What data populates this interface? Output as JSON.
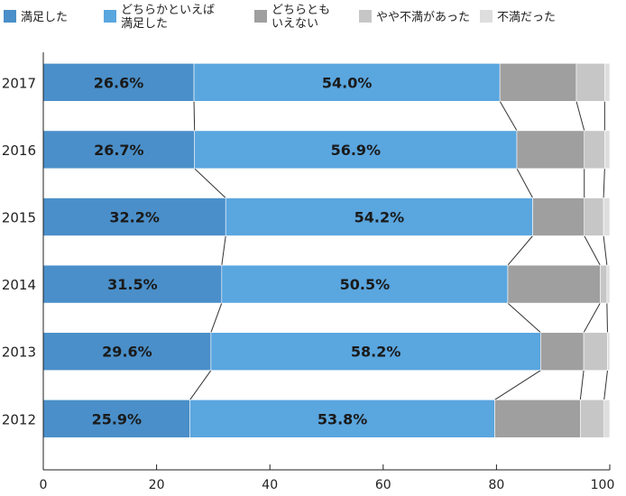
{
  "chart_data": {
    "type": "bar",
    "orientation": "horizontal",
    "stacked": true,
    "categories": [
      "2017",
      "2016",
      "2015",
      "2014",
      "2013",
      "2012"
    ],
    "series": [
      {
        "name": "満足した",
        "color": "#4a8fc9",
        "values": [
          26.6,
          26.7,
          32.2,
          31.5,
          29.6,
          25.9
        ],
        "labels": [
          "26.6%",
          "26.7%",
          "32.2%",
          "31.5%",
          "29.6%",
          "25.9%"
        ]
      },
      {
        "name": "どちらかといえば\n満足した",
        "color": "#5aa6df",
        "values": [
          54.0,
          56.9,
          54.2,
          50.5,
          58.2,
          53.8
        ],
        "labels": [
          "54.0%",
          "56.9%",
          "54.2%",
          "50.5%",
          "58.2%",
          "53.8%"
        ]
      },
      {
        "name": "どちらとも\nいえない",
        "color": "#9f9f9f",
        "values": [
          13.5,
          11.9,
          9.1,
          16.3,
          7.6,
          15.1
        ]
      },
      {
        "name": "やや不満があった",
        "color": "#c6c6c6",
        "values": [
          5.0,
          3.6,
          3.4,
          1.2,
          4.2,
          4.2
        ]
      },
      {
        "name": "不満だった",
        "color": "#dedede",
        "values": [
          0.9,
          0.9,
          1.1,
          0.5,
          0.4,
          1.0
        ]
      }
    ],
    "xlim": [
      0,
      100
    ],
    "xticks": [
      "0",
      "20",
      "40",
      "60",
      "80",
      "100"
    ],
    "xlabel": "",
    "ylabel": "",
    "legend_position": "top",
    "grid": false,
    "connector_lines": true
  }
}
